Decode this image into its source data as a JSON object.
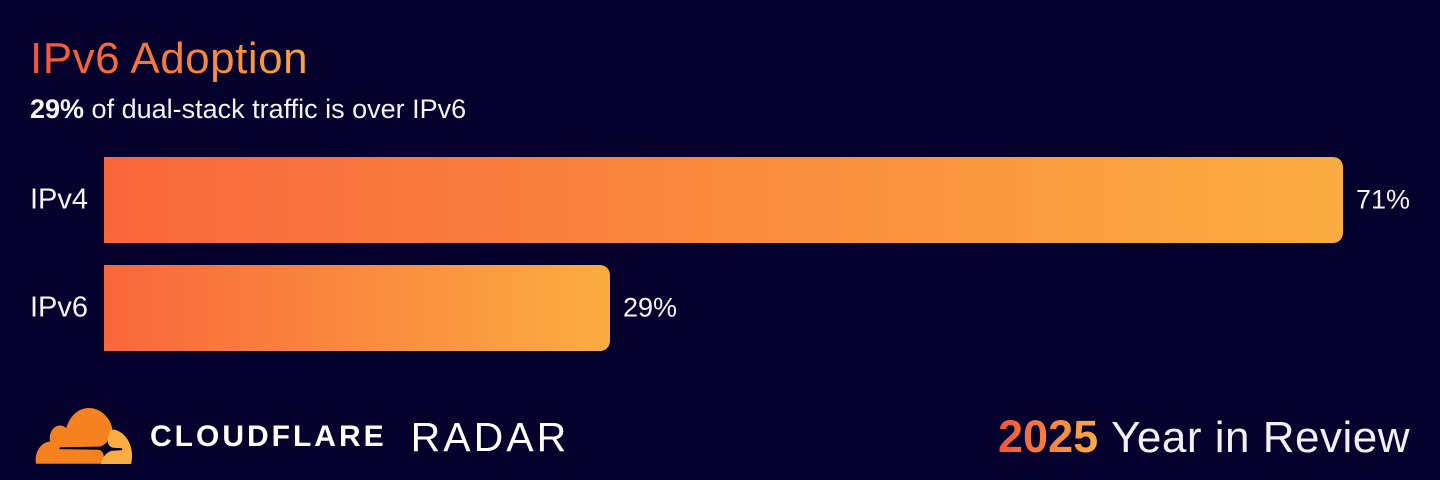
{
  "header": {
    "title": "IPv6 Adoption",
    "subtitle_emphasis": "29%",
    "subtitle_text": " of dual-stack traffic is over IPv6"
  },
  "chart_data": {
    "type": "bar",
    "orientation": "horizontal",
    "title": "IPv6 Adoption",
    "subtitle": "29% of dual-stack traffic is over IPv6",
    "categories": [
      "IPv4",
      "IPv6"
    ],
    "values": [
      71,
      29
    ],
    "value_labels": [
      "71%",
      "29%"
    ],
    "unit": "percent",
    "xlim": [
      0,
      71
    ],
    "grid": false,
    "legend": false,
    "axis_labels": false,
    "bar_gradient": [
      "#F8673C",
      "#FBAD41"
    ]
  },
  "footer": {
    "brand": "CLOUDFLARE",
    "product": "RADAR",
    "year": "2025",
    "tagline": "Year in Review",
    "logo_icon": "cloudflare-cloud-icon"
  },
  "colors": {
    "background": "#06012C",
    "bar_start": "#F8673C",
    "bar_end": "#FBAD41",
    "title_start": "#F4533C",
    "title_end": "#F9A63D",
    "text": "#F4F3F7",
    "logo_orange": "#F6821F",
    "logo_gold": "#FBAD41"
  }
}
